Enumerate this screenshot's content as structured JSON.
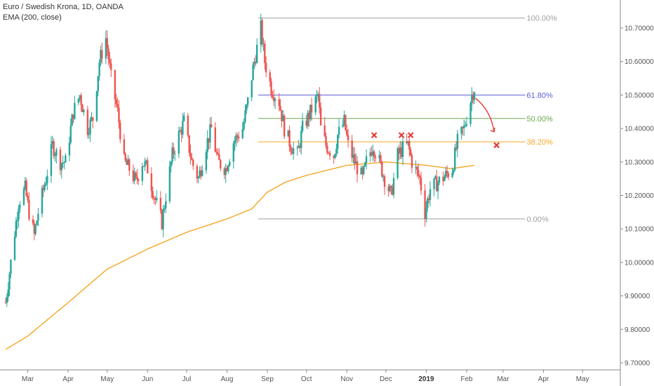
{
  "header": {
    "symbol_line": "Euro / Swedish Krona, 1D, OANDA",
    "indicator_line": "EMA (200, close)"
  },
  "colors": {
    "up": "#26a69a",
    "down": "#ef5350",
    "ema": "#f5a623",
    "fib_100": "#9e9e9e",
    "fib_618": "#5b5bd6",
    "fib_50": "#6aa84f",
    "fib_382": "#f5a623",
    "fib_0": "#9e9e9e",
    "marker": "#e53935"
  },
  "chart_data": {
    "type": "candlestick",
    "ylim": [
      9.7,
      10.74
    ],
    "y_ticks": [
      "10.70000",
      "10.60000",
      "10.50000",
      "10.40000",
      "10.30000",
      "10.20000",
      "10.10000",
      "10.00000",
      "9.90000",
      "9.80000",
      "9.70000"
    ],
    "x_ticks": [
      "Mar",
      "Apr",
      "May",
      "Jun",
      "Jul",
      "Aug",
      "Sep",
      "Oct",
      "Nov",
      "Dec",
      "2019",
      "Feb",
      "Mar",
      "Apr",
      "May"
    ],
    "x_tick_bold": "2019",
    "price_keypoints": [
      [
        "2018-02-12",
        9.88
      ],
      [
        "2018-02-16",
        10.0
      ],
      [
        "2018-02-22",
        10.18
      ],
      [
        "2018-02-27",
        10.22
      ],
      [
        "2018-03-02",
        10.15
      ],
      [
        "2018-03-06",
        10.08
      ],
      [
        "2018-03-09",
        10.15
      ],
      [
        "2018-03-15",
        10.25
      ],
      [
        "2018-03-20",
        10.35
      ],
      [
        "2018-03-26",
        10.3
      ],
      [
        "2018-03-30",
        10.3
      ],
      [
        "2018-04-05",
        10.45
      ],
      [
        "2018-04-10",
        10.5
      ],
      [
        "2018-04-16",
        10.4
      ],
      [
        "2018-04-20",
        10.43
      ],
      [
        "2018-04-25",
        10.6
      ],
      [
        "2018-04-30",
        10.67
      ],
      [
        "2018-05-04",
        10.55
      ],
      [
        "2018-05-09",
        10.45
      ],
      [
        "2018-05-14",
        10.3
      ],
      [
        "2018-05-18",
        10.28
      ],
      [
        "2018-05-23",
        10.24
      ],
      [
        "2018-05-28",
        10.3
      ],
      [
        "2018-06-01",
        10.28
      ],
      [
        "2018-06-06",
        10.2
      ],
      [
        "2018-06-12",
        10.12
      ],
      [
        "2018-06-15",
        10.2
      ],
      [
        "2018-06-20",
        10.32
      ],
      [
        "2018-06-25",
        10.38
      ],
      [
        "2018-06-29",
        10.42
      ],
      [
        "2018-07-05",
        10.3
      ],
      [
        "2018-07-10",
        10.25
      ],
      [
        "2018-07-16",
        10.35
      ],
      [
        "2018-07-20",
        10.4
      ],
      [
        "2018-07-25",
        10.3
      ],
      [
        "2018-07-31",
        10.28
      ],
      [
        "2018-08-06",
        10.36
      ],
      [
        "2018-08-13",
        10.4
      ],
      [
        "2018-08-17",
        10.48
      ],
      [
        "2018-08-21",
        10.58
      ],
      [
        "2018-08-27",
        10.7
      ],
      [
        "2018-08-30",
        10.6
      ],
      [
        "2018-09-04",
        10.52
      ],
      [
        "2018-09-10",
        10.48
      ],
      [
        "2018-09-14",
        10.4
      ],
      [
        "2018-09-19",
        10.35
      ],
      [
        "2018-09-24",
        10.32
      ],
      [
        "2018-09-28",
        10.4
      ],
      [
        "2018-10-03",
        10.44
      ],
      [
        "2018-10-10",
        10.5
      ],
      [
        "2018-10-12",
        10.4
      ],
      [
        "2018-10-16",
        10.35
      ],
      [
        "2018-10-22",
        10.32
      ],
      [
        "2018-10-25",
        10.38
      ],
      [
        "2018-10-30",
        10.42
      ],
      [
        "2018-11-02",
        10.35
      ],
      [
        "2018-11-07",
        10.3
      ],
      [
        "2018-11-13",
        10.25
      ],
      [
        "2018-11-16",
        10.3
      ],
      [
        "2018-11-21",
        10.35
      ],
      [
        "2018-11-26",
        10.3
      ],
      [
        "2018-11-30",
        10.25
      ],
      [
        "2018-12-05",
        10.2
      ],
      [
        "2018-12-10",
        10.32
      ],
      [
        "2018-12-14",
        10.34
      ],
      [
        "2018-12-18",
        10.35
      ],
      [
        "2018-12-21",
        10.3
      ],
      [
        "2018-12-27",
        10.25
      ],
      [
        "2018-12-31",
        10.15
      ],
      [
        "2019-01-04",
        10.22
      ],
      [
        "2019-01-10",
        10.24
      ],
      [
        "2019-01-16",
        10.26
      ],
      [
        "2019-01-21",
        10.28
      ],
      [
        "2019-01-25",
        10.36
      ],
      [
        "2019-01-30",
        10.4
      ],
      [
        "2019-02-05",
        10.5
      ],
      [
        "2019-02-07",
        10.52
      ]
    ],
    "ema_keypoints": [
      [
        "2018-02-12",
        9.74
      ],
      [
        "2018-03-01",
        9.78
      ],
      [
        "2018-04-01",
        9.88
      ],
      [
        "2018-05-01",
        9.98
      ],
      [
        "2018-06-01",
        10.04
      ],
      [
        "2018-07-01",
        10.09
      ],
      [
        "2018-08-01",
        10.13
      ],
      [
        "2018-08-20",
        10.16
      ],
      [
        "2018-09-01",
        10.21
      ],
      [
        "2018-09-15",
        10.24
      ],
      [
        "2018-10-01",
        10.26
      ],
      [
        "2018-11-01",
        10.29
      ],
      [
        "2018-12-01",
        10.3
      ],
      [
        "2019-01-01",
        10.29
      ],
      [
        "2019-01-20",
        10.28
      ],
      [
        "2019-02-07",
        10.29
      ]
    ],
    "fib_levels": [
      {
        "label": "100.00%",
        "value": 10.73,
        "start": "2018-08-25",
        "end": "2019-03-18",
        "color_key": "fib_100"
      },
      {
        "label": "61.80%",
        "value": 10.5,
        "start": "2018-08-25",
        "end": "2019-03-18",
        "color_key": "fib_618"
      },
      {
        "label": "50.00%",
        "value": 10.43,
        "start": "2018-08-25",
        "end": "2019-03-18",
        "color_key": "fib_50"
      },
      {
        "label": "38.20%",
        "value": 10.36,
        "start": "2018-08-25",
        "end": "2019-03-18",
        "color_key": "fib_382"
      },
      {
        "label": "0.00%",
        "value": 10.13,
        "start": "2018-08-25",
        "end": "2019-03-18",
        "color_key": "fib_0"
      }
    ],
    "markers": [
      {
        "date": "2018-11-22",
        "value": 10.38
      },
      {
        "date": "2018-12-13",
        "value": 10.38
      },
      {
        "date": "2018-12-20",
        "value": 10.38
      },
      {
        "date": "2019-02-24",
        "value": 10.35
      }
    ],
    "arrow": {
      "from": [
        "2019-02-08",
        10.49
      ],
      "to": [
        "2019-02-22",
        10.39
      ]
    },
    "x_range": [
      "2018-02-12",
      "2019-05-16"
    ]
  }
}
